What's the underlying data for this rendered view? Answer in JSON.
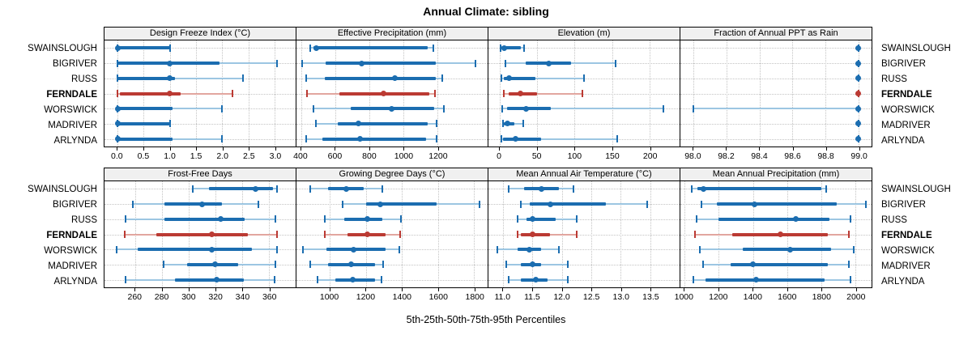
{
  "title": "Annual Climate: sibling",
  "caption": "5th-25th-50th-75th-95th Percentiles",
  "highlight_site": "FERNDALE",
  "colors": {
    "blue_dark": "#1b6db0",
    "blue_light": "#9cc6e2",
    "red_dark": "#bb3a33",
    "red_light": "#e2a69f",
    "grid": "#c3c3c3",
    "header_bg": "#f0f0f0",
    "border": "#000000"
  },
  "chart_data": {
    "type": "dotplot-percentiles",
    "percentiles": [
      5,
      25,
      50,
      75,
      95
    ],
    "legend_note": "5th-25th-50th-75th-95th Percentiles",
    "sites": [
      "SWAINSLOUGH",
      "BIGRIVER",
      "RUSS",
      "FERNDALE",
      "WORSWICK",
      "MADRIVER",
      "ARLYNDA"
    ],
    "panels": [
      {
        "title": "Design Freeze Index (°C)",
        "row": 1,
        "domain": [
          -0.25,
          3.4
        ],
        "ticks": [
          0.0,
          0.5,
          1.0,
          1.5,
          2.0,
          2.5,
          3.0
        ],
        "tick_labels": [
          "0.0",
          "0.5",
          "1.0",
          "1.5",
          "2.0",
          "2.5",
          "3.0"
        ],
        "values": [
          [
            0,
            0,
            0,
            1.0,
            1.0
          ],
          [
            0,
            0,
            1.0,
            1.95,
            3.05
          ],
          [
            0,
            0,
            1.0,
            1.1,
            2.4
          ],
          [
            0,
            0.05,
            1.0,
            1.2,
            2.2
          ],
          [
            0,
            0,
            0,
            1.05,
            2.0
          ],
          [
            0,
            0,
            0,
            1.0,
            1.0
          ],
          [
            0,
            0,
            0,
            1.05,
            2.0
          ]
        ]
      },
      {
        "title": "Effective Precipitation (mm)",
        "row": 1,
        "domain": [
          372,
          1492
        ],
        "ticks": [
          400,
          600,
          800,
          1000,
          1200
        ],
        "tick_labels": [
          "400",
          "600",
          "800",
          "1000",
          "1200"
        ],
        "values": [
          [
            455,
            470,
            490,
            1140,
            1175
          ],
          [
            405,
            545,
            755,
            1190,
            1420
          ],
          [
            430,
            540,
            950,
            1190,
            1225
          ],
          [
            435,
            625,
            880,
            1150,
            1185
          ],
          [
            470,
            690,
            930,
            1180,
            1235
          ],
          [
            485,
            615,
            735,
            1140,
            1195
          ],
          [
            430,
            525,
            745,
            1130,
            1195
          ]
        ]
      },
      {
        "title": "Elevation (m)",
        "row": 1,
        "domain": [
          -15,
          240
        ],
        "ticks": [
          0,
          50,
          100,
          150,
          200
        ],
        "tick_labels": [
          "0",
          "50",
          "100",
          "150",
          "200"
        ],
        "values": [
          [
            1,
            2,
            6,
            28,
            33
          ],
          [
            8,
            35,
            65,
            95,
            155
          ],
          [
            2,
            5,
            13,
            48,
            113
          ],
          [
            5,
            12,
            28,
            50,
            110
          ],
          [
            3,
            10,
            35,
            68,
            218
          ],
          [
            4,
            6,
            10,
            20,
            31
          ],
          [
            2,
            4,
            21,
            55,
            157
          ]
        ]
      },
      {
        "title": "Fraction of Annual PPT as Rain",
        "row": 1,
        "domain": [
          97.92,
          99.08
        ],
        "ticks": [
          98.0,
          98.2,
          98.4,
          98.6,
          98.8,
          99.0
        ],
        "tick_labels": [
          "98.0",
          "98.2",
          "98.4",
          "98.6",
          "98.8",
          "99.0"
        ],
        "values": [
          [
            99.0,
            99.0,
            99.0,
            99.0,
            99.0
          ],
          [
            99.0,
            99.0,
            99.0,
            99.0,
            99.0
          ],
          [
            99.0,
            99.0,
            99.0,
            99.0,
            99.0
          ],
          [
            99.0,
            99.0,
            99.0,
            99.0,
            99.0
          ],
          [
            98.0,
            99.0,
            99.0,
            99.0,
            99.0
          ],
          [
            99.0,
            99.0,
            99.0,
            99.0,
            99.0
          ],
          [
            99.0,
            99.0,
            99.0,
            99.0,
            99.0
          ]
        ]
      },
      {
        "title": "Frost-Free Days",
        "row": 2,
        "domain": [
          237,
          380
        ],
        "ticks": [
          260,
          280,
          300,
          320,
          340,
          360
        ],
        "tick_labels": [
          "260",
          "280",
          "300",
          "320",
          "340",
          "360"
        ],
        "values": [
          [
            303,
            315,
            350,
            363,
            366
          ],
          [
            258,
            282,
            310,
            325,
            352
          ],
          [
            253,
            282,
            324,
            342,
            365
          ],
          [
            252,
            276,
            317,
            344,
            366
          ],
          [
            246,
            262,
            317,
            347,
            366
          ],
          [
            281,
            299,
            320,
            337,
            365
          ],
          [
            253,
            290,
            321,
            341,
            364
          ]
        ]
      },
      {
        "title": "Growing Degree Days (°C)",
        "row": 2,
        "domain": [
          815,
          1875
        ],
        "ticks": [
          1000,
          1200,
          1400,
          1600,
          1800
        ],
        "tick_labels": [
          "1000",
          "1200",
          "1400",
          "1600",
          "1800"
        ],
        "values": [
          [
            890,
            990,
            1090,
            1190,
            1290
          ],
          [
            1070,
            1200,
            1280,
            1590,
            1830
          ],
          [
            970,
            1080,
            1210,
            1290,
            1395
          ],
          [
            970,
            1100,
            1210,
            1310,
            1390
          ],
          [
            850,
            980,
            1130,
            1310,
            1385
          ],
          [
            890,
            990,
            1120,
            1250,
            1295
          ],
          [
            930,
            1030,
            1125,
            1250,
            1285
          ]
        ]
      },
      {
        "title": "Mean Annual Air Temperature (°C)",
        "row": 2,
        "domain": [
          10.75,
          14.0
        ],
        "ticks": [
          11.0,
          11.5,
          12.0,
          12.5,
          13.0,
          13.5
        ],
        "tick_labels": [
          "11.0",
          "11.5",
          "12.0",
          "12.5",
          "13.0",
          "13.5"
        ],
        "values": [
          [
            11.1,
            11.35,
            11.65,
            11.95,
            12.2
          ],
          [
            11.3,
            11.45,
            11.8,
            12.75,
            13.45
          ],
          [
            11.25,
            11.4,
            11.5,
            11.9,
            12.25
          ],
          [
            11.25,
            11.3,
            11.5,
            11.8,
            12.25
          ],
          [
            10.9,
            11.25,
            11.45,
            11.65,
            11.95
          ],
          [
            11.05,
            11.3,
            11.5,
            11.65,
            12.1
          ],
          [
            11.1,
            11.3,
            11.55,
            11.75,
            12.1
          ]
        ]
      },
      {
        "title": "Mean Annual Precipitation (mm)",
        "row": 2,
        "domain": [
          975,
          2095
        ],
        "ticks": [
          1000,
          1200,
          1400,
          1600,
          1800,
          2000
        ],
        "tick_labels": [
          "1000",
          "1200",
          "1400",
          "1600",
          "1800",
          "2000"
        ],
        "values": [
          [
            1040,
            1075,
            1110,
            1800,
            1830
          ],
          [
            1100,
            1190,
            1410,
            1890,
            2060
          ],
          [
            1070,
            1200,
            1650,
            1850,
            1970
          ],
          [
            1060,
            1280,
            1560,
            1840,
            1960
          ],
          [
            1090,
            1340,
            1620,
            1860,
            1990
          ],
          [
            1110,
            1270,
            1400,
            1840,
            1960
          ],
          [
            1050,
            1120,
            1420,
            1820,
            1970
          ]
        ]
      }
    ]
  }
}
